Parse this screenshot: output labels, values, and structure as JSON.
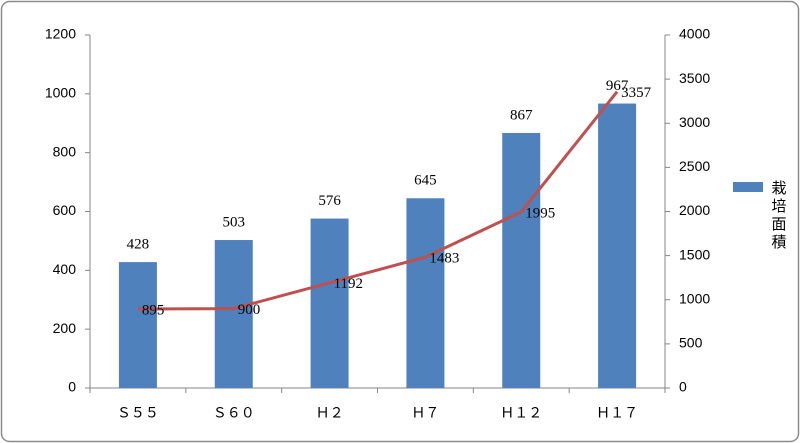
{
  "chart_data": {
    "type": "bar_line",
    "categories": [
      "Ｓ５５",
      "Ｓ６０",
      "Ｈ２",
      "Ｈ７",
      "Ｈ１２",
      "Ｈ１７"
    ],
    "series": [
      {
        "name": "栽培面積",
        "type": "bar",
        "color": "#4f81bd",
        "values": [
          428,
          503,
          576,
          645,
          867,
          967
        ]
      },
      {
        "type": "line",
        "axis": "y2",
        "color": "#c0504d",
        "values": [
          895,
          900,
          1192,
          1483,
          1995,
          3357
        ]
      }
    ],
    "ylim": [
      0,
      1200
    ],
    "yticks": [
      0,
      200,
      400,
      600,
      800,
      1000,
      1200
    ],
    "y2lim": [
      0,
      4000
    ],
    "y2ticks": [
      0,
      500,
      1000,
      1500,
      2000,
      2500,
      3000,
      3500,
      4000
    ],
    "grid": false,
    "legend": "right"
  }
}
